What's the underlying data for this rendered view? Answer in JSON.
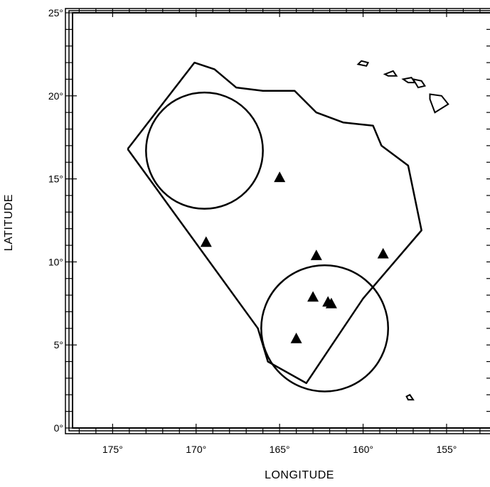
{
  "chart_data": {
    "type": "map",
    "title": "",
    "xlabel": "LONGITUDE",
    "ylabel": "LATITUDE",
    "xlim": [
      -177.4,
      -152.4
    ],
    "ylim": [
      0,
      25
    ],
    "x_ticks": [
      {
        "value": -175,
        "label": "175°"
      },
      {
        "value": -170,
        "label": "170°"
      },
      {
        "value": -165,
        "label": "165°"
      },
      {
        "value": -160,
        "label": "160°"
      },
      {
        "value": -155,
        "label": "155°"
      }
    ],
    "y_ticks": [
      {
        "value": 0,
        "label": "0°"
      },
      {
        "value": 5,
        "label": "5°"
      },
      {
        "value": 10,
        "label": "10°"
      },
      {
        "value": 15,
        "label": "15°"
      },
      {
        "value": 20,
        "label": "20°"
      },
      {
        "value": 25,
        "label": "25°"
      }
    ],
    "study_area_polygon": [
      [
        -174.1,
        16.8
      ],
      [
        -170.1,
        22.0
      ],
      [
        -168.9,
        21.6
      ],
      [
        -167.6,
        20.5
      ],
      [
        -166.0,
        20.3
      ],
      [
        -164.1,
        20.3
      ],
      [
        -162.8,
        19.0
      ],
      [
        -161.2,
        18.4
      ],
      [
        -159.4,
        18.2
      ],
      [
        -158.9,
        17.0
      ],
      [
        -157.3,
        15.8
      ],
      [
        -156.5,
        11.9
      ],
      [
        -160.0,
        7.8
      ],
      [
        -163.4,
        2.7
      ],
      [
        -165.7,
        4.0
      ],
      [
        -166.3,
        6.0
      ],
      [
        -174.1,
        16.8
      ]
    ],
    "circles": [
      {
        "center_lon": -169.5,
        "center_lat": 16.7,
        "radius_deg": 3.5
      },
      {
        "center_lon": -162.3,
        "center_lat": 6.0,
        "radius_deg": 3.8
      }
    ],
    "triangle_markers": [
      {
        "lon": -165.0,
        "lat": 15.1
      },
      {
        "lon": -169.4,
        "lat": 11.2
      },
      {
        "lon": -162.8,
        "lat": 10.4
      },
      {
        "lon": -158.8,
        "lat": 10.5
      },
      {
        "lon": -163.0,
        "lat": 7.9
      },
      {
        "lon": -162.1,
        "lat": 7.6
      },
      {
        "lon": -161.9,
        "lat": 7.5
      },
      {
        "lon": -164.0,
        "lat": 5.4
      }
    ],
    "islands": [
      [
        [
          -160.3,
          21.9
        ],
        [
          -160.1,
          22.1
        ],
        [
          -159.7,
          22.0
        ],
        [
          -159.8,
          21.8
        ],
        [
          -160.3,
          21.9
        ]
      ],
      [
        [
          -158.7,
          21.3
        ],
        [
          -158.2,
          21.5
        ],
        [
          -158.0,
          21.2
        ],
        [
          -158.5,
          21.2
        ],
        [
          -158.7,
          21.3
        ]
      ],
      [
        [
          -157.6,
          21.0
        ],
        [
          -157.1,
          21.1
        ],
        [
          -156.9,
          20.8
        ],
        [
          -157.3,
          20.8
        ],
        [
          -157.6,
          21.0
        ]
      ],
      [
        [
          -157.0,
          21.0
        ],
        [
          -156.5,
          20.9
        ],
        [
          -156.3,
          20.6
        ],
        [
          -156.7,
          20.5
        ],
        [
          -157.0,
          21.0
        ]
      ],
      [
        [
          -156.0,
          20.1
        ],
        [
          -155.3,
          20.0
        ],
        [
          -154.9,
          19.5
        ],
        [
          -155.7,
          19.0
        ],
        [
          -156.0,
          19.8
        ],
        [
          -156.0,
          20.1
        ]
      ],
      [
        [
          -157.4,
          1.9
        ],
        [
          -157.2,
          2.0
        ],
        [
          -157.0,
          1.7
        ],
        [
          -157.3,
          1.7
        ],
        [
          -157.4,
          1.9
        ]
      ]
    ]
  }
}
